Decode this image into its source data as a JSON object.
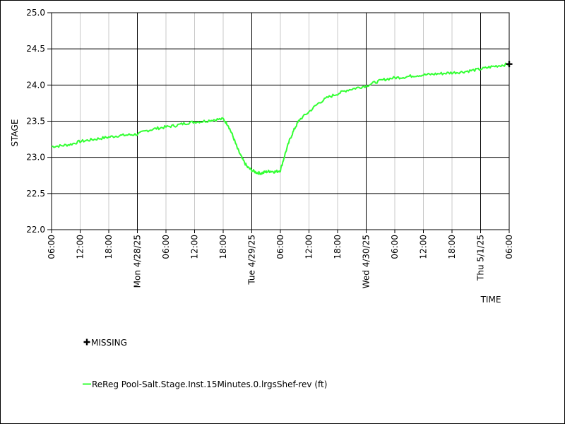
{
  "chart_data": {
    "type": "line",
    "title": "",
    "xlabel": "TIME",
    "ylabel": "STAGE",
    "ylim": [
      22.0,
      25.0
    ],
    "yticks": [
      "22.0",
      "22.5",
      "23.0",
      "23.5",
      "24.0",
      "24.5",
      "25.0"
    ],
    "xlim": [
      "4/27/25 06:00",
      "5/1/25 06:00"
    ],
    "xticks": [
      {
        "label": "06:00",
        "hours": 0,
        "major": false
      },
      {
        "label": "12:00",
        "hours": 6,
        "major": false
      },
      {
        "label": "18:00",
        "hours": 12,
        "major": false
      },
      {
        "label": "Mon 4/28/25",
        "hours": 18,
        "major": true
      },
      {
        "label": "06:00",
        "hours": 24,
        "major": false
      },
      {
        "label": "12:00",
        "hours": 30,
        "major": false
      },
      {
        "label": "18:00",
        "hours": 36,
        "major": false
      },
      {
        "label": "Tue 4/29/25",
        "hours": 42,
        "major": true
      },
      {
        "label": "06:00",
        "hours": 48,
        "major": false
      },
      {
        "label": "12:00",
        "hours": 54,
        "major": false
      },
      {
        "label": "18:00",
        "hours": 60,
        "major": false
      },
      {
        "label": "Wed 4/30/25",
        "hours": 66,
        "major": true
      },
      {
        "label": "06:00",
        "hours": 72,
        "major": false
      },
      {
        "label": "12:00",
        "hours": 78,
        "major": false
      },
      {
        "label": "18:00",
        "hours": 84,
        "major": false
      },
      {
        "label": "Thu 5/1/25",
        "hours": 90,
        "major": true
      },
      {
        "label": "06:00",
        "hours": 96,
        "major": false
      }
    ],
    "grid": true,
    "series": [
      {
        "name": "ReReg Pool-Salt.Stage.Inst.15Minutes.0.lrgsShef-rev (ft)",
        "color": "#33ff33",
        "x": [
          0,
          2,
          4,
          6,
          8,
          10,
          12,
          14,
          16,
          18,
          20,
          22,
          24,
          26,
          28,
          30,
          32,
          34,
          36,
          37,
          38,
          39,
          40,
          41,
          42,
          43,
          44,
          45,
          46,
          47,
          48,
          49,
          50,
          51,
          52,
          54,
          56,
          58,
          60,
          62,
          64,
          66,
          68,
          70,
          72,
          74,
          76,
          78,
          80,
          82,
          84,
          86,
          88,
          90,
          92,
          94,
          96
        ],
        "y": [
          23.15,
          23.16,
          23.18,
          23.22,
          23.24,
          23.26,
          23.28,
          23.3,
          23.31,
          23.32,
          23.37,
          23.4,
          23.42,
          23.44,
          23.47,
          23.49,
          23.5,
          23.52,
          23.53,
          23.45,
          23.3,
          23.12,
          22.98,
          22.87,
          22.82,
          22.79,
          22.78,
          22.8,
          22.81,
          22.8,
          22.82,
          23.05,
          23.25,
          23.4,
          23.52,
          23.63,
          23.75,
          23.83,
          23.88,
          23.93,
          23.96,
          23.99,
          24.04,
          24.08,
          24.1,
          24.11,
          24.13,
          24.14,
          24.15,
          24.16,
          24.17,
          24.18,
          24.2,
          24.22,
          24.25,
          24.27,
          24.29
        ]
      }
    ],
    "missing_marker": {
      "x": 96,
      "y": 24.29
    },
    "legend": [
      {
        "symbol": "plus",
        "label": "MISSING",
        "color": "#000000"
      },
      {
        "symbol": "line",
        "label": "ReReg Pool-Salt.Stage.Inst.15Minutes.0.lrgsShef-rev (ft)",
        "color": "#33ff33"
      }
    ]
  }
}
